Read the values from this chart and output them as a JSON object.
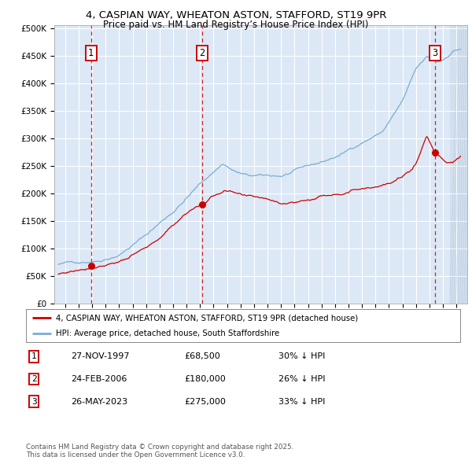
{
  "title_line1": "4, CASPIAN WAY, WHEATON ASTON, STAFFORD, ST19 9PR",
  "title_line2": "Price paid vs. HM Land Registry’s House Price Index (HPI)",
  "ylim": [
    0,
    500000
  ],
  "sale_dates": [
    1997.92,
    2006.15,
    2023.4
  ],
  "sale_prices": [
    68500,
    180000,
    275000
  ],
  "sale_labels": [
    "1",
    "2",
    "3"
  ],
  "legend_entries": [
    "4, CASPIAN WAY, WHEATON ASTON, STAFFORD, ST19 9PR (detached house)",
    "HPI: Average price, detached house, South Staffordshire"
  ],
  "table_rows": [
    [
      "1",
      "27-NOV-1997",
      "£68,500",
      "30% ↓ HPI"
    ],
    [
      "2",
      "24-FEB-2006",
      "£180,000",
      "26% ↓ HPI"
    ],
    [
      "3",
      "26-MAY-2023",
      "£275,000",
      "33% ↓ HPI"
    ]
  ],
  "footnote": "Contains HM Land Registry data © Crown copyright and database right 2025.\nThis data is licensed under the Open Government Licence v3.0.",
  "house_color": "#cc0000",
  "hpi_color": "#7aadd4",
  "background_color": "#dce8f5",
  "future_background": "#ccdaeb",
  "grid_color": "#ffffff"
}
